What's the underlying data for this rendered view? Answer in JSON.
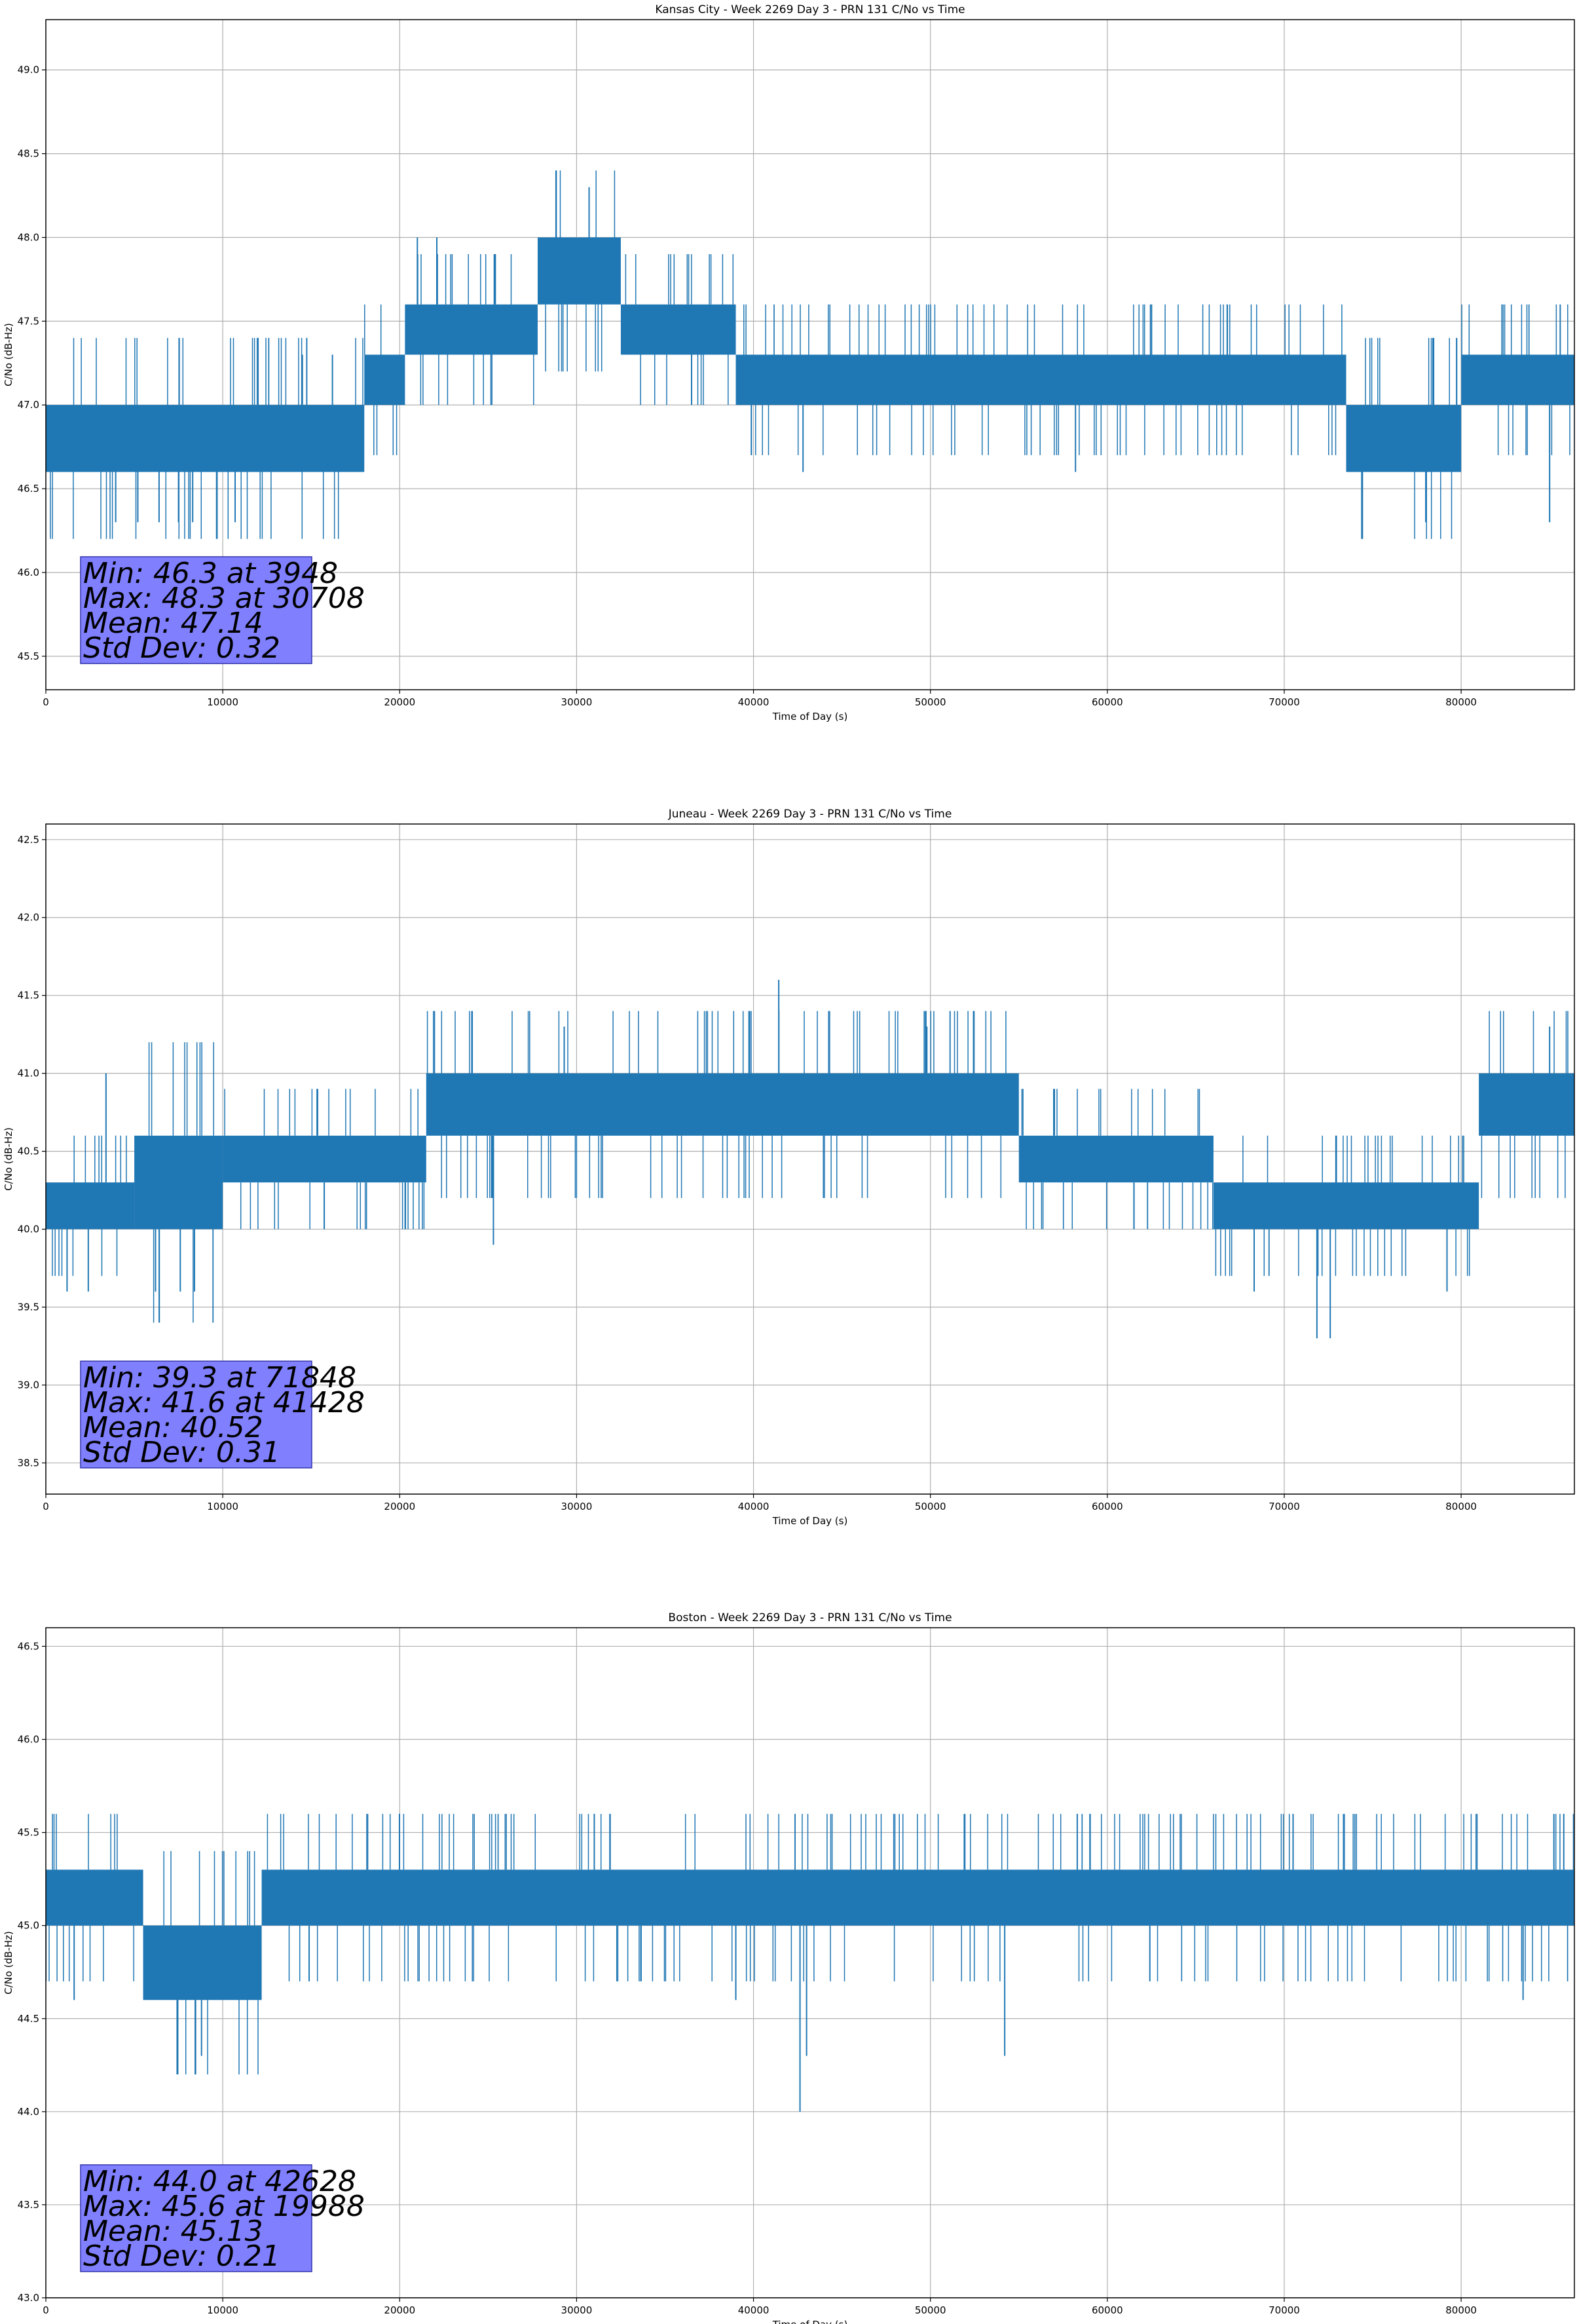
{
  "chart_data": [
    {
      "type": "line",
      "title": "Kansas City - Week 2269 Day 3 - PRN 131 C/No vs Time",
      "xlabel": "Time of Day (s)",
      "ylabel": "C/No (dB-Hz)",
      "xlim": [
        0,
        86400
      ],
      "ylim": [
        45.3,
        49.3
      ],
      "xticks": [
        0,
        10000,
        20000,
        30000,
        40000,
        50000,
        60000,
        70000,
        80000
      ],
      "yticks": [
        45.5,
        46.0,
        46.5,
        47.0,
        47.5,
        48.0,
        48.5,
        49.0
      ],
      "ytick_format": 1,
      "grid": true,
      "color": "#1f77b4",
      "segments": [
        {
          "x0": 0,
          "x1": 18000,
          "lo": 46.6,
          "hi": 47.0
        },
        {
          "x0": 18000,
          "x1": 20300,
          "lo": 47.0,
          "hi": 47.3
        },
        {
          "x0": 20300,
          "x1": 27800,
          "lo": 47.3,
          "hi": 47.6
        },
        {
          "x0": 27800,
          "x1": 32500,
          "lo": 47.6,
          "hi": 48.0
        },
        {
          "x0": 32500,
          "x1": 39000,
          "lo": 47.3,
          "hi": 47.6
        },
        {
          "x0": 39000,
          "x1": 73500,
          "lo": 47.0,
          "hi": 47.3
        },
        {
          "x0": 73500,
          "x1": 80000,
          "lo": 46.6,
          "hi": 47.0
        },
        {
          "x0": 80000,
          "x1": 86400,
          "lo": 47.0,
          "hi": 47.3
        }
      ],
      "spikes": [
        {
          "x": 3948,
          "y": 46.3
        },
        {
          "x": 5200,
          "y": 46.3
        },
        {
          "x": 6400,
          "y": 46.3
        },
        {
          "x": 7500,
          "y": 46.3
        },
        {
          "x": 8300,
          "y": 46.3
        },
        {
          "x": 10700,
          "y": 46.3
        },
        {
          "x": 14500,
          "y": 47.3
        },
        {
          "x": 16200,
          "y": 47.3
        },
        {
          "x": 21000,
          "y": 48.0
        },
        {
          "x": 22100,
          "y": 48.0
        },
        {
          "x": 30708,
          "y": 48.3
        },
        {
          "x": 36500,
          "y": 47.0
        },
        {
          "x": 42800,
          "y": 46.6
        },
        {
          "x": 58200,
          "y": 46.6
        },
        {
          "x": 62500,
          "y": 47.6
        },
        {
          "x": 78000,
          "y": 46.3
        },
        {
          "x": 85000,
          "y": 46.3
        },
        {
          "x": 85600,
          "y": 47.6
        }
      ],
      "stats": {
        "min": "Min: 46.3 at 3948",
        "max": "Max: 48.3 at 30708",
        "mean": "Mean: 47.14",
        "std": "Std Dev: 0.32"
      }
    },
    {
      "type": "line",
      "title": "Juneau - Week 2269 Day 3 - PRN 131 C/No vs Time",
      "xlabel": "Time of Day (s)",
      "ylabel": "C/No (dB-Hz)",
      "xlim": [
        0,
        86400
      ],
      "ylim": [
        38.3,
        42.6
      ],
      "xticks": [
        0,
        10000,
        20000,
        30000,
        40000,
        50000,
        60000,
        70000,
        80000
      ],
      "yticks": [
        38.5,
        39.0,
        39.5,
        40.0,
        40.5,
        41.0,
        41.5,
        42.0,
        42.5
      ],
      "ytick_format": 1,
      "grid": true,
      "color": "#1f77b4",
      "segments": [
        {
          "x0": 0,
          "x1": 5000,
          "lo": 40.0,
          "hi": 40.3
        },
        {
          "x0": 5000,
          "x1": 10000,
          "lo": 40.0,
          "hi": 40.6
        },
        {
          "x0": 10000,
          "x1": 21500,
          "lo": 40.3,
          "hi": 40.6
        },
        {
          "x0": 21500,
          "x1": 55000,
          "lo": 40.6,
          "hi": 41.0
        },
        {
          "x0": 55000,
          "x1": 66000,
          "lo": 40.3,
          "hi": 40.6
        },
        {
          "x0": 66000,
          "x1": 81000,
          "lo": 40.0,
          "hi": 40.3
        },
        {
          "x0": 81000,
          "x1": 86400,
          "lo": 40.6,
          "hi": 41.0
        }
      ],
      "spikes": [
        {
          "x": 1200,
          "y": 39.6
        },
        {
          "x": 2400,
          "y": 39.6
        },
        {
          "x": 3400,
          "y": 41.0
        },
        {
          "x": 6200,
          "y": 39.6
        },
        {
          "x": 7600,
          "y": 39.6
        },
        {
          "x": 8400,
          "y": 39.6
        },
        {
          "x": 25300,
          "y": 39.9
        },
        {
          "x": 29300,
          "y": 41.3
        },
        {
          "x": 41428,
          "y": 41.6
        },
        {
          "x": 49800,
          "y": 41.3
        },
        {
          "x": 68300,
          "y": 39.6
        },
        {
          "x": 71848,
          "y": 39.3
        },
        {
          "x": 72600,
          "y": 39.3
        },
        {
          "x": 79200,
          "y": 39.6
        },
        {
          "x": 85000,
          "y": 41.3
        }
      ],
      "stats": {
        "min": "Min: 39.3 at 71848",
        "max": "Max: 41.6 at 41428",
        "mean": "Mean: 40.52",
        "std": "Std Dev: 0.31"
      }
    },
    {
      "type": "line",
      "title": "Boston - Week 2269 Day 3 - PRN 131 C/No vs Time",
      "xlabel": "Time of Day (s)",
      "ylabel": "C/No (dB-Hz)",
      "xlim": [
        0,
        86400
      ],
      "ylim": [
        43.0,
        46.6
      ],
      "xticks": [
        0,
        10000,
        20000,
        30000,
        40000,
        50000,
        60000,
        70000,
        80000
      ],
      "yticks": [
        43.0,
        43.5,
        44.0,
        44.5,
        45.0,
        45.5,
        46.0,
        46.5
      ],
      "ytick_format": 1,
      "grid": true,
      "color": "#1f77b4",
      "segments": [
        {
          "x0": 0,
          "x1": 5500,
          "lo": 45.0,
          "hi": 45.3
        },
        {
          "x0": 5500,
          "x1": 12200,
          "lo": 44.6,
          "hi": 45.0
        },
        {
          "x0": 12200,
          "x1": 86400,
          "lo": 45.0,
          "hi": 45.3
        }
      ],
      "spikes": [
        {
          "x": 1600,
          "y": 44.6
        },
        {
          "x": 8800,
          "y": 44.3
        },
        {
          "x": 19988,
          "y": 45.6
        },
        {
          "x": 31000,
          "y": 45.6
        },
        {
          "x": 39000,
          "y": 44.6
        },
        {
          "x": 42628,
          "y": 44.0
        },
        {
          "x": 43000,
          "y": 44.3
        },
        {
          "x": 54200,
          "y": 44.3
        },
        {
          "x": 58300,
          "y": 45.6
        },
        {
          "x": 70500,
          "y": 45.6
        },
        {
          "x": 83500,
          "y": 44.6
        },
        {
          "x": 85800,
          "y": 45.6
        }
      ],
      "stats": {
        "min": "Min: 44.0 at 42628",
        "max": "Max: 45.6 at 19988",
        "mean": "Mean: 45.13",
        "std": "Std Dev: 0.21"
      }
    }
  ]
}
